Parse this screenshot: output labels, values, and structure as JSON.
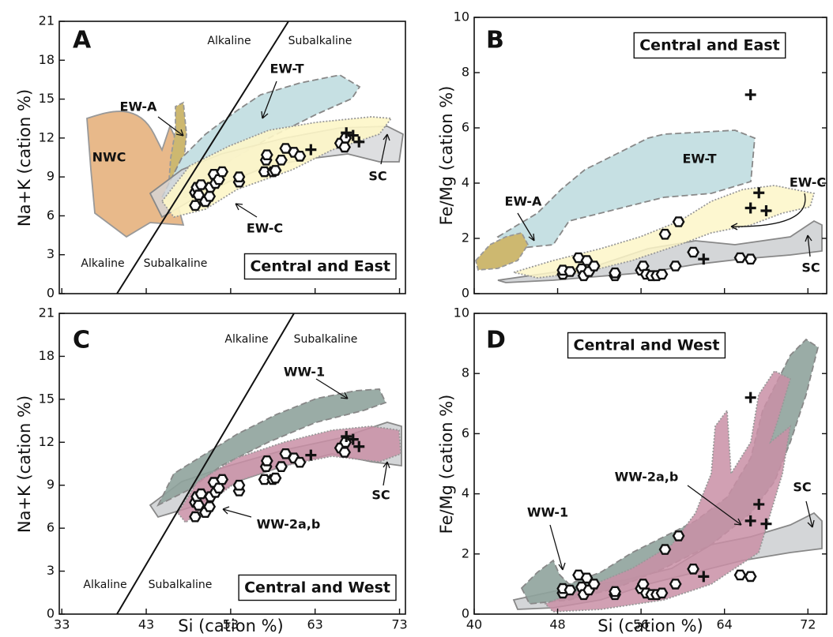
{
  "chart_data": [
    {
      "type": "scatter",
      "panel": "A",
      "title": "Central and East",
      "ylabel": "Na+K (cation %)",
      "ylim": [
        0,
        21
      ],
      "yticks": [
        0,
        3,
        6,
        9,
        12,
        15,
        18,
        21
      ],
      "labels": [
        "Alkaline",
        "Subalkaline",
        "Alkaline",
        "Subalkaline",
        "EW-T",
        "EW-A",
        "NWC",
        "SC",
        "EW-C"
      ],
      "series": [
        {
          "marker": "hexagon",
          "color": "#111111",
          "x": [
            48.8,
            48.8,
            49,
            49.2,
            49.5,
            50,
            50.5,
            50.6,
            51,
            51.2,
            51.6,
            52,
            54,
            54,
            57,
            57.2,
            57.3,
            58,
            58.3,
            59,
            59.5,
            60.5,
            61.2,
            66,
            66.5,
            66.6
          ],
          "y": [
            6.8,
            7.8,
            8.2,
            7.6,
            8.4,
            7.1,
            7.5,
            8.2,
            9.2,
            8.5,
            8.8,
            9.4,
            8.6,
            9,
            9.4,
            10.3,
            10.7,
            9.4,
            9.5,
            10.3,
            11.2,
            10.9,
            10.6,
            11.6,
            11.3,
            12
          ]
        },
        {
          "marker": "cross",
          "color": "#111111",
          "x": [
            62.5,
            66.7,
            67.5,
            68.2
          ],
          "y": [
            11.1,
            12.4,
            12.2,
            11.7
          ]
        }
      ]
    },
    {
      "type": "scatter",
      "panel": "B",
      "title": "Central and East",
      "ylabel": "Fe/Mg (cation %)",
      "ylim": [
        0,
        10
      ],
      "yticks": [
        0,
        2,
        4,
        6,
        8,
        10
      ],
      "labels": [
        "EW-T",
        "EW-A",
        "EW-C",
        "SC"
      ],
      "series": [
        {
          "marker": "hexagon",
          "color": "#111111",
          "x": [
            48.5,
            48.5,
            49.2,
            50,
            50.3,
            50.5,
            50.8,
            51,
            51.5,
            53.5,
            53.5,
            56,
            56.2,
            56.5,
            57,
            57.5,
            58,
            58.3,
            59.3,
            59.6,
            61,
            65.5,
            66.5
          ],
          "y": [
            0.7,
            0.85,
            0.8,
            1.3,
            0.9,
            0.65,
            1.2,
            0.8,
            1.0,
            0.65,
            0.75,
            0.85,
            1.0,
            0.7,
            0.65,
            0.65,
            0.7,
            2.15,
            1.0,
            2.6,
            1.5,
            1.3,
            1.25
          ]
        },
        {
          "marker": "cross",
          "color": "#111111",
          "x": [
            62,
            66.5,
            66.5,
            67.3,
            68
          ],
          "y": [
            1.25,
            7.2,
            3.1,
            3.65,
            3.0
          ]
        }
      ]
    },
    {
      "type": "scatter",
      "panel": "C",
      "title": "Central and West",
      "ylabel": "Na+K (cation %)",
      "xlabel": "Si (cation %)",
      "xlim": [
        32.7,
        73.7
      ],
      "xticks": [
        33,
        43,
        53,
        63,
        73
      ],
      "ylim": [
        0,
        21
      ],
      "yticks": [
        0,
        3,
        6,
        9,
        12,
        15,
        18,
        21
      ],
      "labels": [
        "Alkaline",
        "Subalkaline",
        "Alkaline",
        "Subalkaline",
        "WW-1",
        "SC",
        "WW-2a,b"
      ],
      "series": [
        {
          "marker": "hexagon",
          "color": "#111111",
          "x": [
            48.8,
            48.8,
            49,
            49.2,
            49.5,
            50,
            50.5,
            50.6,
            51,
            51.2,
            51.6,
            52,
            54,
            54,
            57,
            57.2,
            57.3,
            58,
            58.3,
            59,
            59.5,
            60.5,
            61.2,
            66,
            66.5,
            66.6
          ],
          "y": [
            6.8,
            7.8,
            8.2,
            7.6,
            8.4,
            7.1,
            7.5,
            8.2,
            9.2,
            8.5,
            8.8,
            9.4,
            8.6,
            9,
            9.4,
            10.3,
            10.7,
            9.4,
            9.5,
            10.3,
            11.2,
            10.9,
            10.6,
            11.6,
            11.3,
            12
          ]
        },
        {
          "marker": "cross",
          "color": "#111111",
          "x": [
            62.5,
            66.7,
            67.5,
            68.2
          ],
          "y": [
            11.1,
            12.4,
            12.2,
            11.7
          ]
        }
      ]
    },
    {
      "type": "scatter",
      "panel": "D",
      "title": "Central and West",
      "ylabel": "Fe/Mg (cation %)",
      "xlabel": "Si (cation %)",
      "xlim": [
        40,
        73.8
      ],
      "xticks": [
        40,
        48,
        56,
        64,
        72
      ],
      "ylim": [
        0,
        10
      ],
      "yticks": [
        0,
        2,
        4,
        6,
        8,
        10
      ],
      "labels": [
        "WW-1",
        "WW-2a,b",
        "SC"
      ],
      "series": [
        {
          "marker": "hexagon",
          "color": "#111111",
          "x": [
            48.5,
            48.5,
            49.2,
            50,
            50.3,
            50.5,
            50.8,
            51,
            51.5,
            53.5,
            53.5,
            56,
            56.2,
            56.5,
            57,
            57.5,
            58,
            58.3,
            59.3,
            59.6,
            61,
            65.5,
            66.5
          ],
          "y": [
            0.7,
            0.85,
            0.8,
            1.3,
            0.9,
            0.65,
            1.2,
            0.8,
            1.0,
            0.65,
            0.75,
            0.85,
            1.0,
            0.7,
            0.65,
            0.65,
            0.7,
            2.15,
            1.0,
            2.6,
            1.5,
            1.3,
            1.25
          ]
        },
        {
          "marker": "cross",
          "color": "#111111",
          "x": [
            62,
            66.5,
            66.5,
            67.3,
            68
          ],
          "y": [
            1.25,
            7.2,
            3.1,
            3.65,
            3.0
          ]
        }
      ]
    }
  ]
}
